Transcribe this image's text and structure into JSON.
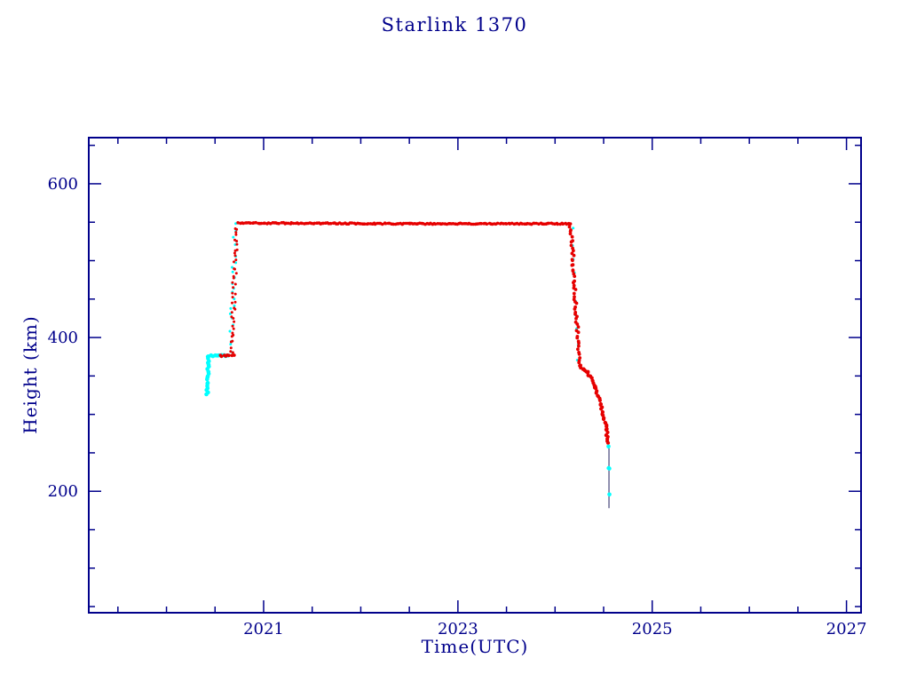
{
  "chart_data": {
    "type": "scatter",
    "title": "Starlink 1370",
    "xlabel": "Time(UTC)",
    "ylabel": "Height (km)",
    "xlim": [
      2019.2,
      2027.15
    ],
    "ylim": [
      42,
      660
    ],
    "x_major_ticks": [
      2021,
      2023,
      2025,
      2027
    ],
    "x_minor_step": 0.5,
    "y_major_ticks": [
      200,
      400,
      600
    ],
    "y_minor_step": 50,
    "grid": false,
    "legend": "none",
    "axis_color": "#00008B",
    "background": "#ffffff",
    "series": [
      {
        "name": "launch-parking-cyan",
        "color": "#00FFFF",
        "style": "dots",
        "marker": 2.3,
        "step": 2.5,
        "jitter": 1.0,
        "points": [
          [
            2020.42,
            325
          ],
          [
            2020.43,
            376
          ],
          [
            2020.64,
            377
          ]
        ]
      },
      {
        "name": "parking-red",
        "color": "#E60000",
        "style": "dots",
        "marker": 1.9,
        "step": 2.2,
        "jitter": 0.8,
        "points": [
          [
            2020.55,
            376
          ],
          [
            2020.69,
            377
          ]
        ]
      },
      {
        "name": "ascent-cyan",
        "color": "#00FFFF",
        "style": "dots",
        "marker": 1.5,
        "step": 6,
        "jitter": 2.2,
        "points": [
          [
            2020.66,
            382
          ],
          [
            2020.71,
            546
          ]
        ]
      },
      {
        "name": "ascent-red",
        "color": "#E60000",
        "style": "dots",
        "marker": 1.5,
        "step": 3.5,
        "jitter": 2.2,
        "points": [
          [
            2020.67,
            380
          ],
          [
            2020.72,
            548
          ]
        ]
      },
      {
        "name": "operational-plateau-red",
        "color": "#E60000",
        "style": "dots",
        "marker": 1.8,
        "step": 2,
        "jitter": 0.7,
        "points": [
          [
            2020.74,
            549
          ],
          [
            2022.5,
            548
          ],
          [
            2024.16,
            548
          ]
        ]
      },
      {
        "name": "deorbit-drop-cyan",
        "color": "#00FFFF",
        "style": "dots",
        "marker": 1.5,
        "step": 16,
        "jitter": 2.0,
        "points": [
          [
            2024.17,
            540
          ],
          [
            2024.24,
            372
          ]
        ]
      },
      {
        "name": "deorbit-drop-red",
        "color": "#E60000",
        "style": "dots",
        "marker": 1.9,
        "step": 3,
        "jitter": 1.6,
        "points": [
          [
            2024.16,
            548
          ],
          [
            2024.25,
            364
          ]
        ]
      },
      {
        "name": "hold-red",
        "color": "#E60000",
        "style": "dots",
        "marker": 2.0,
        "step": 2,
        "jitter": 0.9,
        "points": [
          [
            2024.25,
            363
          ],
          [
            2024.3,
            358
          ],
          [
            2024.34,
            355
          ]
        ]
      },
      {
        "name": "decay-red",
        "color": "#E60000",
        "style": "dots",
        "marker": 2.1,
        "step": 2.5,
        "jitter": 1.1,
        "points": [
          [
            2024.34,
            354
          ],
          [
            2024.41,
            336
          ],
          [
            2024.47,
            312
          ],
          [
            2024.52,
            285
          ],
          [
            2024.55,
            262
          ]
        ]
      },
      {
        "name": "reentry-track-line",
        "color": "#202060",
        "style": "line",
        "width": 1,
        "points": [
          [
            2024.555,
            260
          ],
          [
            2024.555,
            178
          ]
        ]
      },
      {
        "name": "reentry-cyan",
        "color": "#00FFFF",
        "style": "dots",
        "marker": 2.3,
        "step": 60,
        "jitter": 0.4,
        "points": [
          [
            2024.55,
            258
          ],
          [
            2024.555,
            230
          ],
          [
            2024.56,
            196
          ]
        ]
      }
    ]
  }
}
